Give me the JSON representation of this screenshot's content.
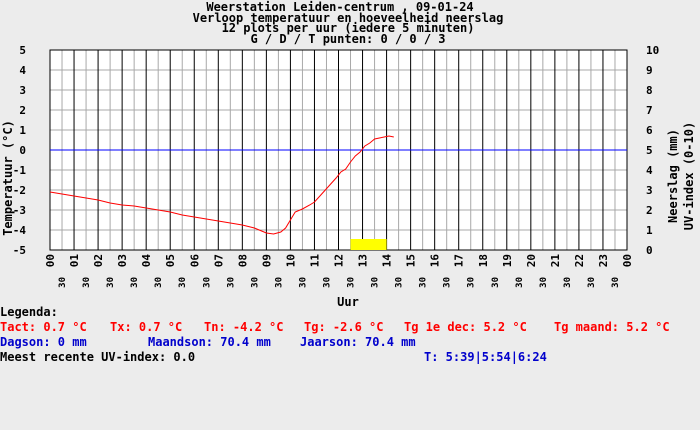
{
  "chart_data": {
    "type": "line",
    "title": "Weerstation Leiden-centrum , 09-01-24",
    "subtitle_lines": [
      "Verloop temperatuur en hoeveelheid neerslag",
      "12 plots per uur (iedere 5 minuten)",
      "G / D / T punten: 0 / 0 / 3"
    ],
    "xlabel": "Uur",
    "ylabel_left": "Temperatuur (°C)",
    "ylabel_right_1": "Neerslag (mm)",
    "ylabel_right_2": "UV-index (0-10)",
    "x_range": [
      0,
      24
    ],
    "ylim_left": [
      -5,
      5
    ],
    "ylim_right": [
      0,
      10
    ],
    "hour_ticks": [
      "00",
      "01",
      "02",
      "03",
      "04",
      "05",
      "06",
      "07",
      "08",
      "09",
      "10",
      "11",
      "12",
      "13",
      "14",
      "15",
      "16",
      "17",
      "18",
      "19",
      "20",
      "21",
      "22",
      "23",
      "00"
    ],
    "half_tick_label": "30",
    "left_ticks": [
      "5",
      "4",
      "3",
      "2",
      "1",
      "0",
      "-1",
      "-2",
      "-3",
      "-4",
      "-5"
    ],
    "right_ticks": [
      "10",
      "9",
      "8",
      "7",
      "6",
      "5",
      "4",
      "3",
      "2",
      "1",
      "0"
    ],
    "grid": true,
    "reference_line": {
      "y": 0,
      "color": "#0000ff"
    },
    "series": [
      {
        "color": "#ff0000",
        "x": [
          0.0,
          0.5,
          1.0,
          1.5,
          2.0,
          2.5,
          3.0,
          3.5,
          4.0,
          4.5,
          5.0,
          5.5,
          6.0,
          6.5,
          7.0,
          7.5,
          8.0,
          8.5,
          8.8,
          9.0,
          9.3,
          9.6,
          9.8,
          10.0,
          10.2,
          10.5,
          10.8,
          11.0,
          11.3,
          11.6,
          11.9,
          12.1,
          12.3,
          12.5,
          12.7,
          12.9,
          13.1,
          13.3,
          13.5,
          13.7,
          13.9,
          14.1,
          14.3
        ],
        "values": [
          -2.1,
          -2.2,
          -2.3,
          -2.4,
          -2.5,
          -2.65,
          -2.75,
          -2.8,
          -2.9,
          -3.0,
          -3.1,
          -3.25,
          -3.35,
          -3.45,
          -3.55,
          -3.65,
          -3.75,
          -3.9,
          -4.05,
          -4.15,
          -4.2,
          -4.1,
          -3.9,
          -3.5,
          -3.1,
          -2.95,
          -2.75,
          -2.6,
          -2.2,
          -1.8,
          -1.4,
          -1.1,
          -0.95,
          -0.6,
          -0.3,
          -0.1,
          0.2,
          0.35,
          0.55,
          0.6,
          0.65,
          0.7,
          0.65
        ]
      }
    ],
    "uv_bar": {
      "x_start": 12.5,
      "x_end": 14.0,
      "value": 0.3,
      "color": "#ffff00"
    }
  },
  "legend": {
    "heading": "Legenda:",
    "tact": "Tact: 0.7 °C",
    "tx": "Tx: 0.7 °C",
    "tn": "Tn: -4.2 °C",
    "tg": "Tg: -2.6 °C",
    "tg_dec": "Tg 1e dec: 5.2 °C",
    "tg_maand": "Tg maand: 5.2 °C",
    "dagson": "Dagson: 0 mm",
    "maandson": "Maandson: 70.4 mm",
    "jaarson": "Jaarson: 70.4 mm",
    "uv_recent": "Meest recente UV-index: 0.0",
    "times": "T: 5:39|5:54|6:24"
  }
}
